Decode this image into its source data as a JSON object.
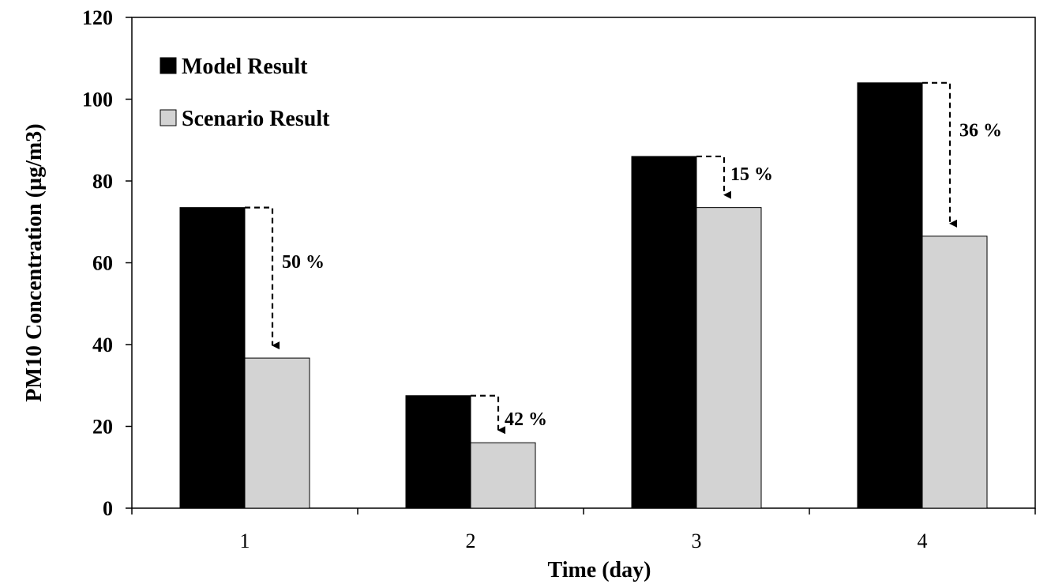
{
  "chart_data": {
    "type": "bar",
    "title": "",
    "xlabel": "Time (day)",
    "ylabel": "PM10 Concentration (µg/m3)",
    "categories": [
      "1",
      "2",
      "3",
      "4"
    ],
    "ylim": [
      0,
      120
    ],
    "yticks": [
      "0",
      "20",
      "40",
      "60",
      "80",
      "100",
      "120"
    ],
    "grid": false,
    "legend_position": "top-left",
    "series": [
      {
        "name": "Model Result",
        "values": [
          73.5,
          27.5,
          86,
          104
        ],
        "color": "#000000"
      },
      {
        "name": "Scenario Result",
        "values": [
          36.7,
          16,
          73.5,
          66.5
        ],
        "color": "#d3d3d3"
      }
    ],
    "annotations": [
      "50 %",
      "42 %",
      "15 %",
      "36 %"
    ]
  }
}
